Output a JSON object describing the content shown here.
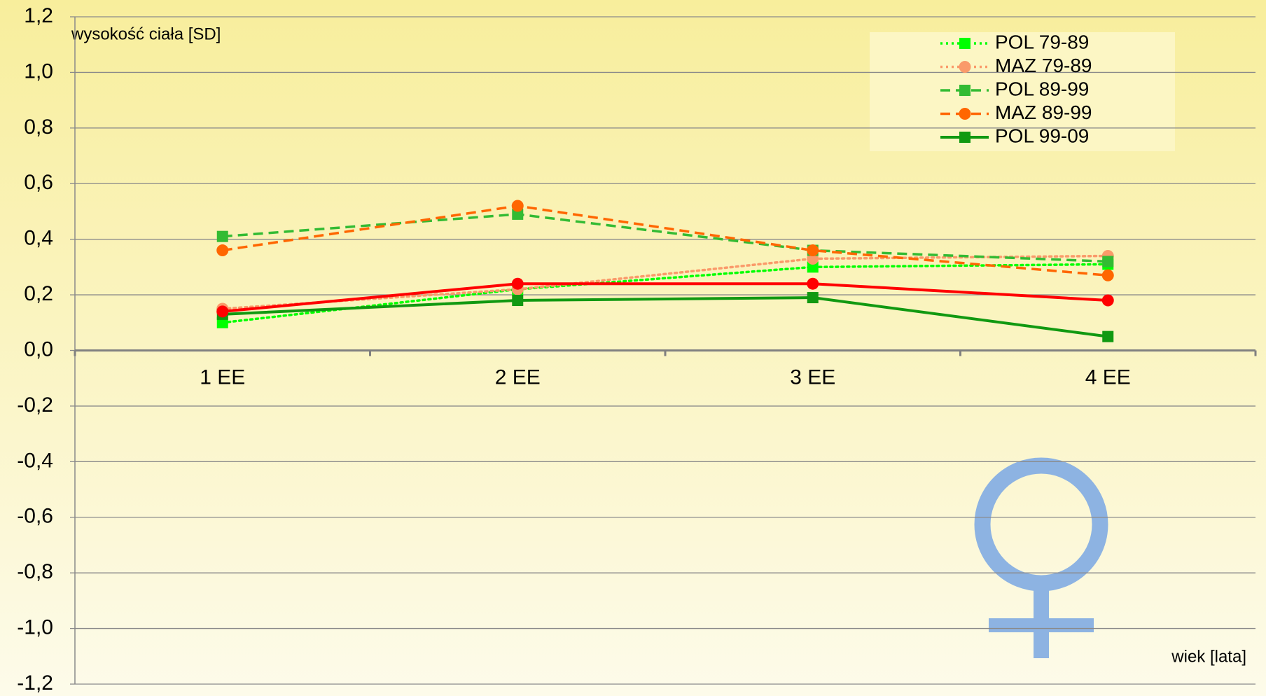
{
  "chart_data": {
    "type": "line",
    "y_label": "wysokość ciała [SD]",
    "x_label": "wiek [lata]",
    "categories": [
      "1 EE",
      "2 EE",
      "3 EE",
      "4 EE"
    ],
    "ylim": [
      -1.2,
      1.2
    ],
    "yticks": [
      {
        "value": 1.2,
        "label": "1,2"
      },
      {
        "value": 1.0,
        "label": "1,0"
      },
      {
        "value": 0.8,
        "label": "0,8"
      },
      {
        "value": 0.6,
        "label": "0,6"
      },
      {
        "value": 0.4,
        "label": "0,4"
      },
      {
        "value": 0.2,
        "label": "0,2"
      },
      {
        "value": 0.0,
        "label": "0,0"
      },
      {
        "value": -0.2,
        "label": "-0,2"
      },
      {
        "value": -0.4,
        "label": "-0,4"
      },
      {
        "value": -0.6,
        "label": "-0,6"
      },
      {
        "value": -0.8,
        "label": "-0,8"
      },
      {
        "value": -1.0,
        "label": "-1,0"
      },
      {
        "value": -1.2,
        "label": "-1,2"
      }
    ],
    "grid": true,
    "legend": "top-right",
    "series": [
      {
        "name": "POL 79-89",
        "color": "#00ff00",
        "dash": "dotted",
        "marker": "square",
        "values": [
          0.1,
          0.22,
          0.3,
          0.31
        ]
      },
      {
        "name": "MAZ 79-89",
        "color": "#fa9a6a",
        "dash": "dotted",
        "marker": "circle",
        "values": [
          0.15,
          0.22,
          0.33,
          0.34
        ]
      },
      {
        "name": "POL 89-99",
        "color": "#33bb33",
        "dash": "dashed",
        "marker": "square",
        "values": [
          0.41,
          0.49,
          0.36,
          0.32
        ]
      },
      {
        "name": "MAZ 89-99",
        "color": "#ff6600",
        "dash": "dashed",
        "marker": "circle",
        "values": [
          0.36,
          0.52,
          0.36,
          0.27
        ]
      },
      {
        "name": "POL 99-09",
        "color": "#119911",
        "dash": "solid",
        "marker": "square",
        "values": [
          0.13,
          0.18,
          0.19,
          0.05
        ]
      },
      {
        "color": "#ff0000",
        "dash": "solid",
        "marker": "circle",
        "values": [
          0.14,
          0.24,
          0.24,
          0.18
        ]
      }
    ]
  }
}
